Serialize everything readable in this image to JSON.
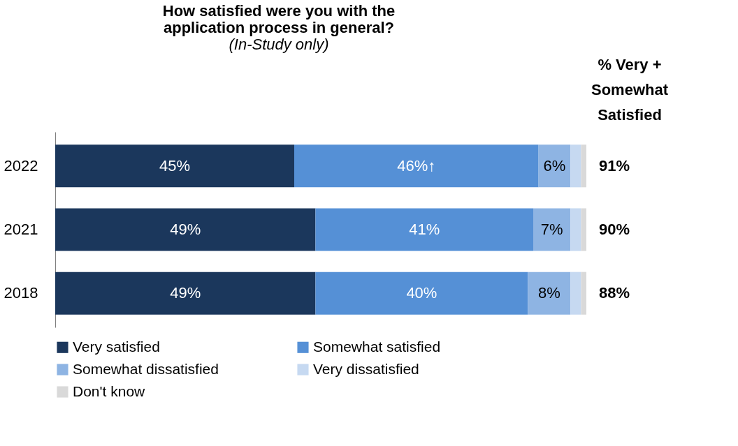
{
  "chart_data": {
    "type": "bar",
    "orientation": "horizontal",
    "stacked": true,
    "title": "How satisfied were you with the application process in general?",
    "subtitle": "(In-Study only)",
    "categories": [
      "2022",
      "2021",
      "2018"
    ],
    "xlim": [
      0,
      100
    ],
    "series": [
      {
        "name": "Very satisfied",
        "color": "#1b375c",
        "values": [
          45,
          49,
          49
        ],
        "value_labels": [
          "45%",
          "49%",
          "49%"
        ]
      },
      {
        "name": "Somewhat satisfied",
        "color": "#5590d6",
        "values": [
          46,
          41,
          40
        ],
        "value_labels": [
          "46%↑",
          "41%",
          "40%"
        ]
      },
      {
        "name": "Somewhat dissatisfied",
        "color": "#8eb4e3",
        "values": [
          6,
          7,
          8
        ],
        "value_labels": [
          "6%",
          "7%",
          "8%"
        ]
      },
      {
        "name": "Very dissatisfied",
        "color": "#c6d9f1",
        "values": [
          2,
          2,
          2
        ],
        "value_labels": [
          null,
          null,
          null
        ]
      },
      {
        "name": "Don't know",
        "color": "#d9d9d9",
        "values": [
          1,
          1,
          1
        ],
        "value_labels": [
          null,
          null,
          null
        ]
      }
    ],
    "annotations": [
      "% Very + Somewhat Satisfied",
      "91%",
      "90%",
      "88%"
    ],
    "legend": "bottom",
    "grid": false
  }
}
